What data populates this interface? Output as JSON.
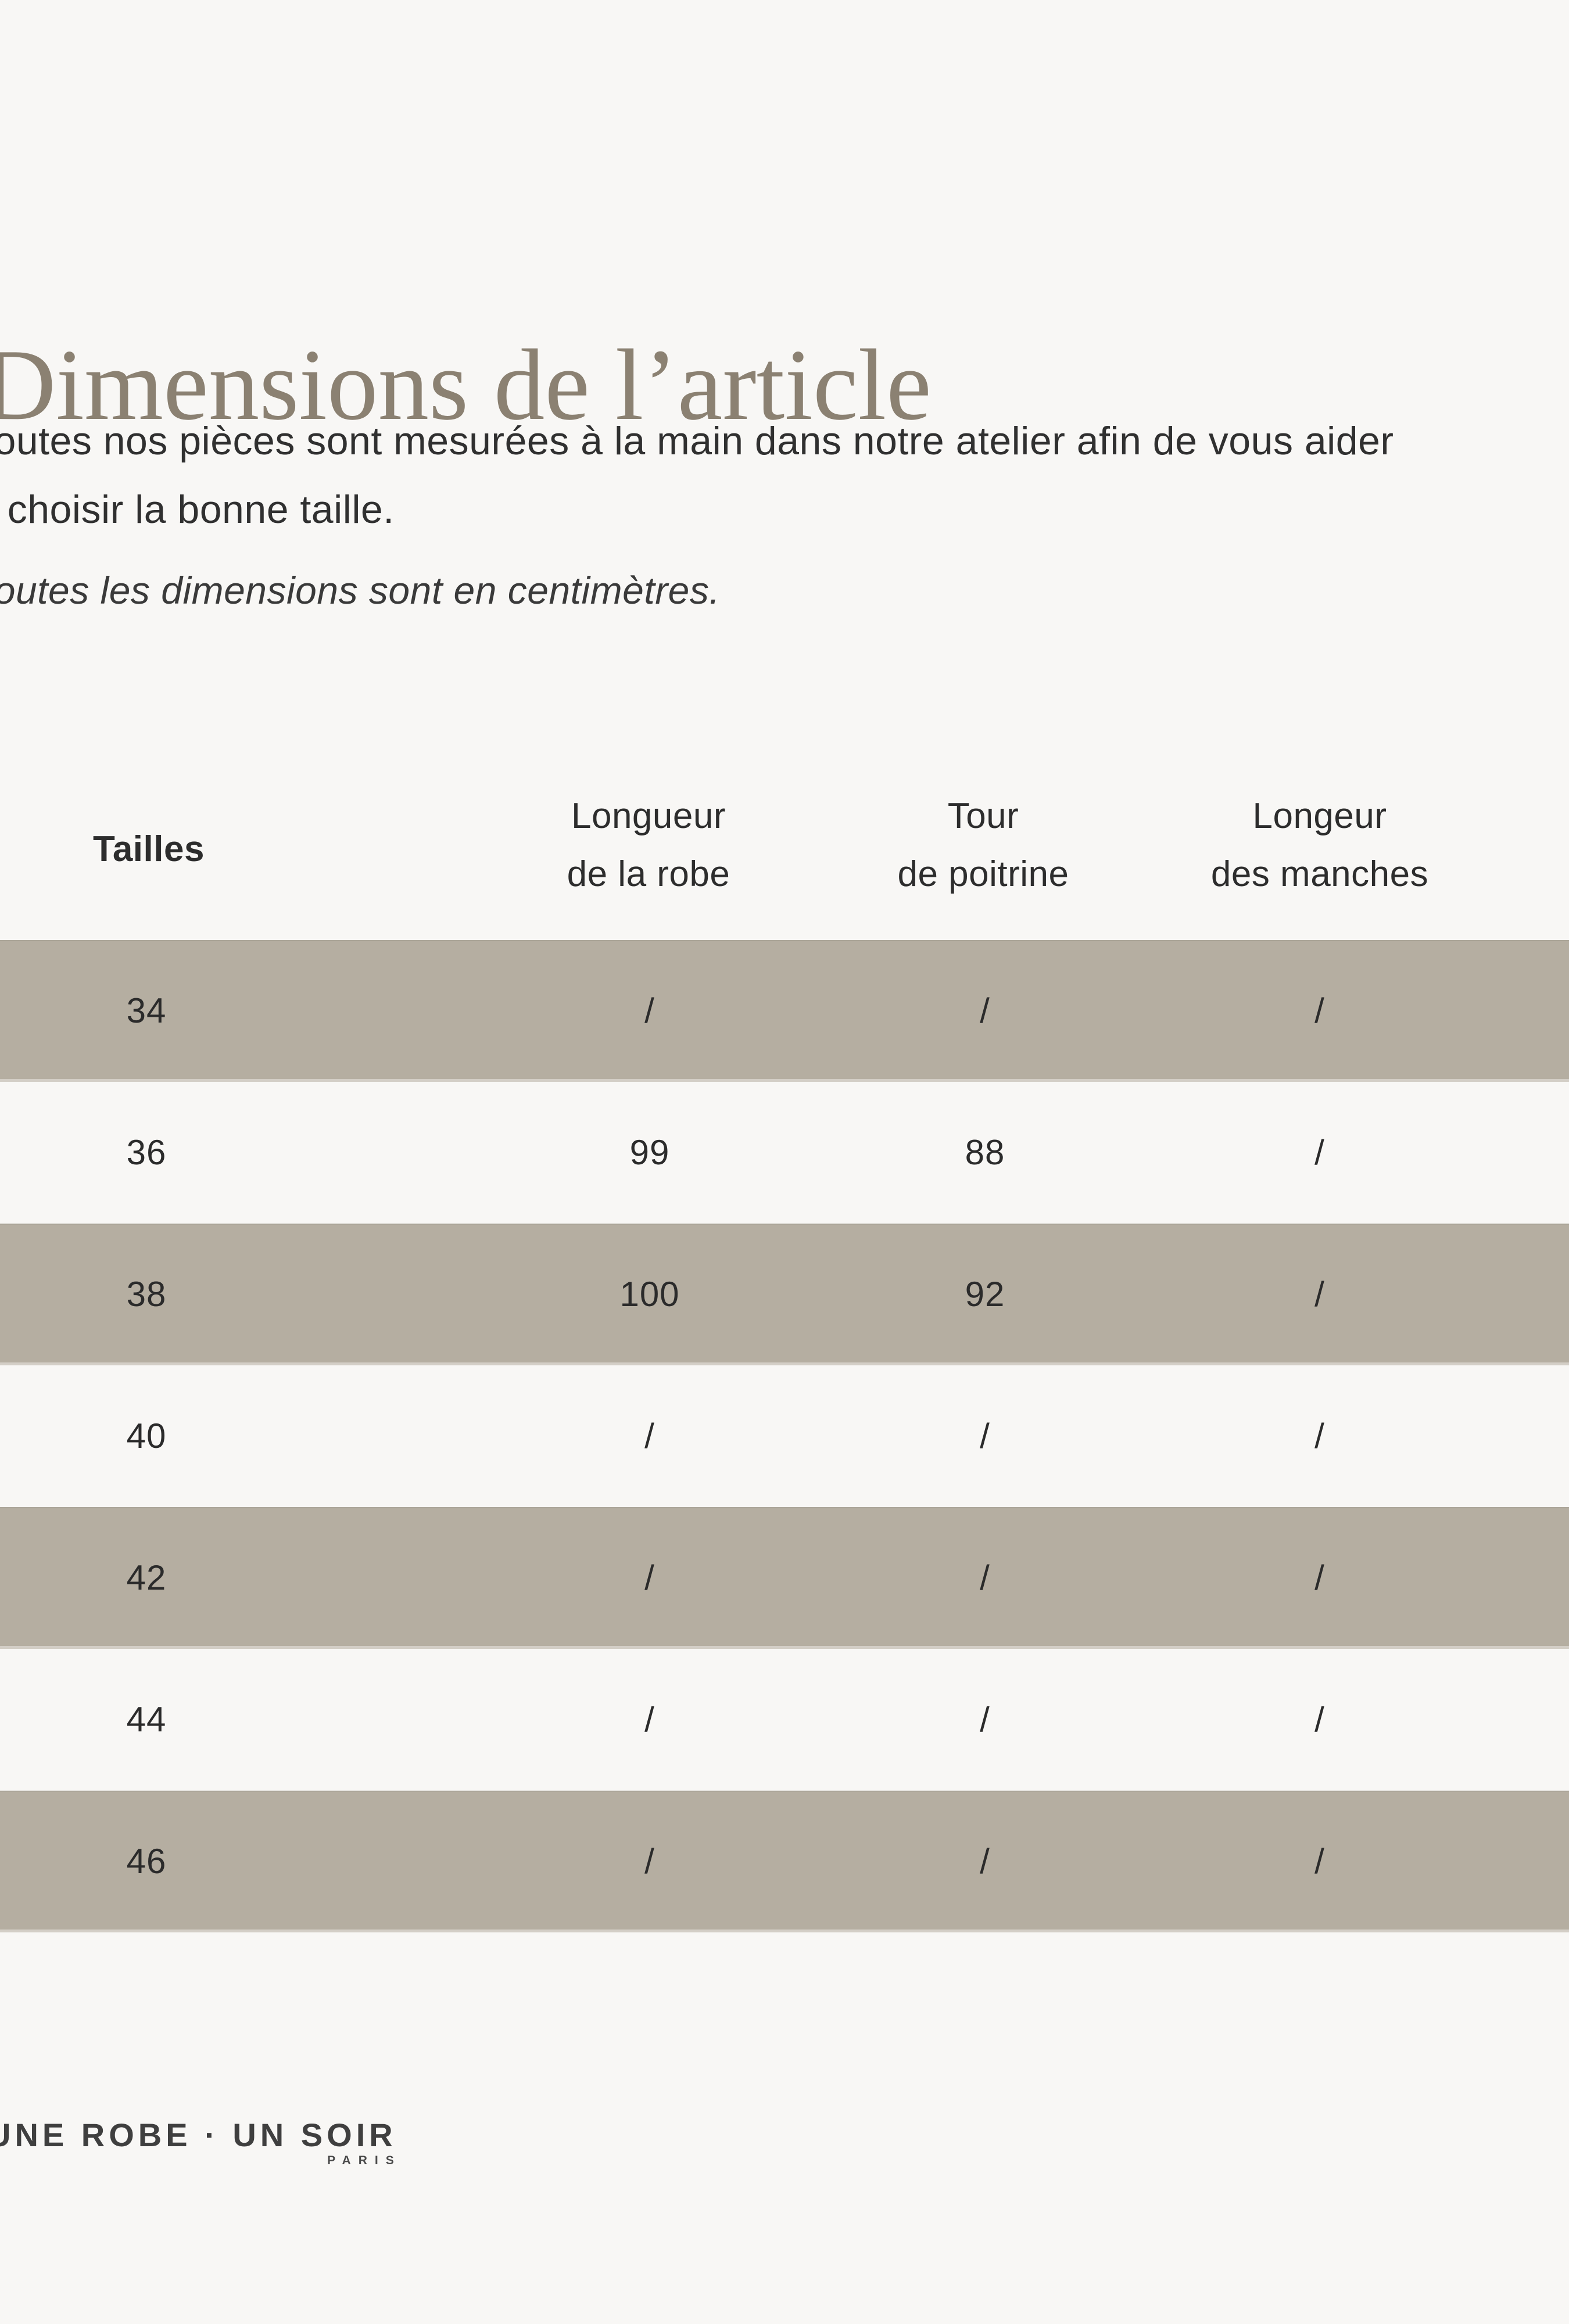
{
  "page": {
    "background": "#f8f7f5",
    "stripe_color": "#b5aea1",
    "title_color": "#8b8172"
  },
  "title": "Dimensions de l’article",
  "intro": {
    "line1": "Toutes nos pièces sont mesurées à la main dans notre atelier afin de vous aider",
    "line2": "à choisir la bonne taille.",
    "note": "Toutes les dimensions sont en centimètres."
  },
  "table": {
    "headers": [
      {
        "line1": "Tailles",
        "line2": ""
      },
      {
        "line1": "Longueur",
        "line2": "de la robe"
      },
      {
        "line1": "Tour",
        "line2": "de poitrine"
      },
      {
        "line1": "Longeur",
        "line2": "des manches"
      }
    ],
    "rows": [
      {
        "size": "34",
        "values": [
          "/",
          "/",
          "/"
        ]
      },
      {
        "size": "36",
        "values": [
          "99",
          "88",
          "/"
        ]
      },
      {
        "size": "38",
        "values": [
          "100",
          "92",
          "/"
        ]
      },
      {
        "size": "40",
        "values": [
          "/",
          "/",
          "/"
        ]
      },
      {
        "size": "42",
        "values": [
          "/",
          "/",
          "/"
        ]
      },
      {
        "size": "44",
        "values": [
          "/",
          "/",
          "/"
        ]
      },
      {
        "size": "46",
        "values": [
          "/",
          "/",
          "/"
        ]
      }
    ]
  },
  "brand": {
    "name": "UNE ROBE · UN SOIR",
    "city": "PARIS"
  }
}
